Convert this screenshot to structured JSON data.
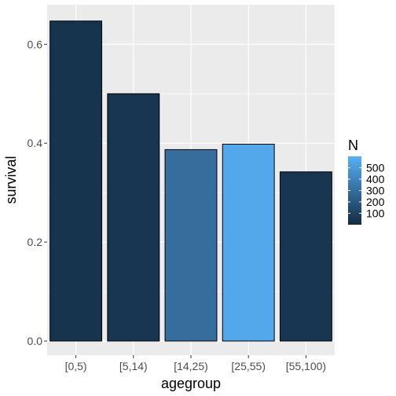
{
  "chart_data": {
    "type": "bar",
    "title": "",
    "xlabel": "agegroup",
    "ylabel": "survival",
    "categories": [
      "[0,5)",
      "[5,14)",
      "[14,25)",
      "[25,55)",
      "[55,100)"
    ],
    "values": [
      0.647,
      0.5,
      0.387,
      0.398,
      0.342
    ],
    "fill_values": [
      40,
      45,
      300,
      560,
      45
    ],
    "ylim": [
      0,
      0.68
    ],
    "yticks": [
      0.0,
      0.2,
      0.4,
      0.6
    ],
    "ytick_labels": [
      "0.0",
      "0.2",
      "0.4",
      "0.6"
    ],
    "grid": true,
    "legend": {
      "title": "N",
      "placement": "right",
      "range": [
        0,
        600
      ],
      "ticks": [
        100,
        200,
        300,
        400,
        500
      ],
      "tick_labels": [
        "100",
        "200",
        "300",
        "400",
        "500"
      ],
      "color_low": "#132B43",
      "color_high": "#56B1F7"
    },
    "panel_color": "#EBEBEB",
    "grid_color": "#FFFFFF",
    "bar_outline": "#000000"
  }
}
